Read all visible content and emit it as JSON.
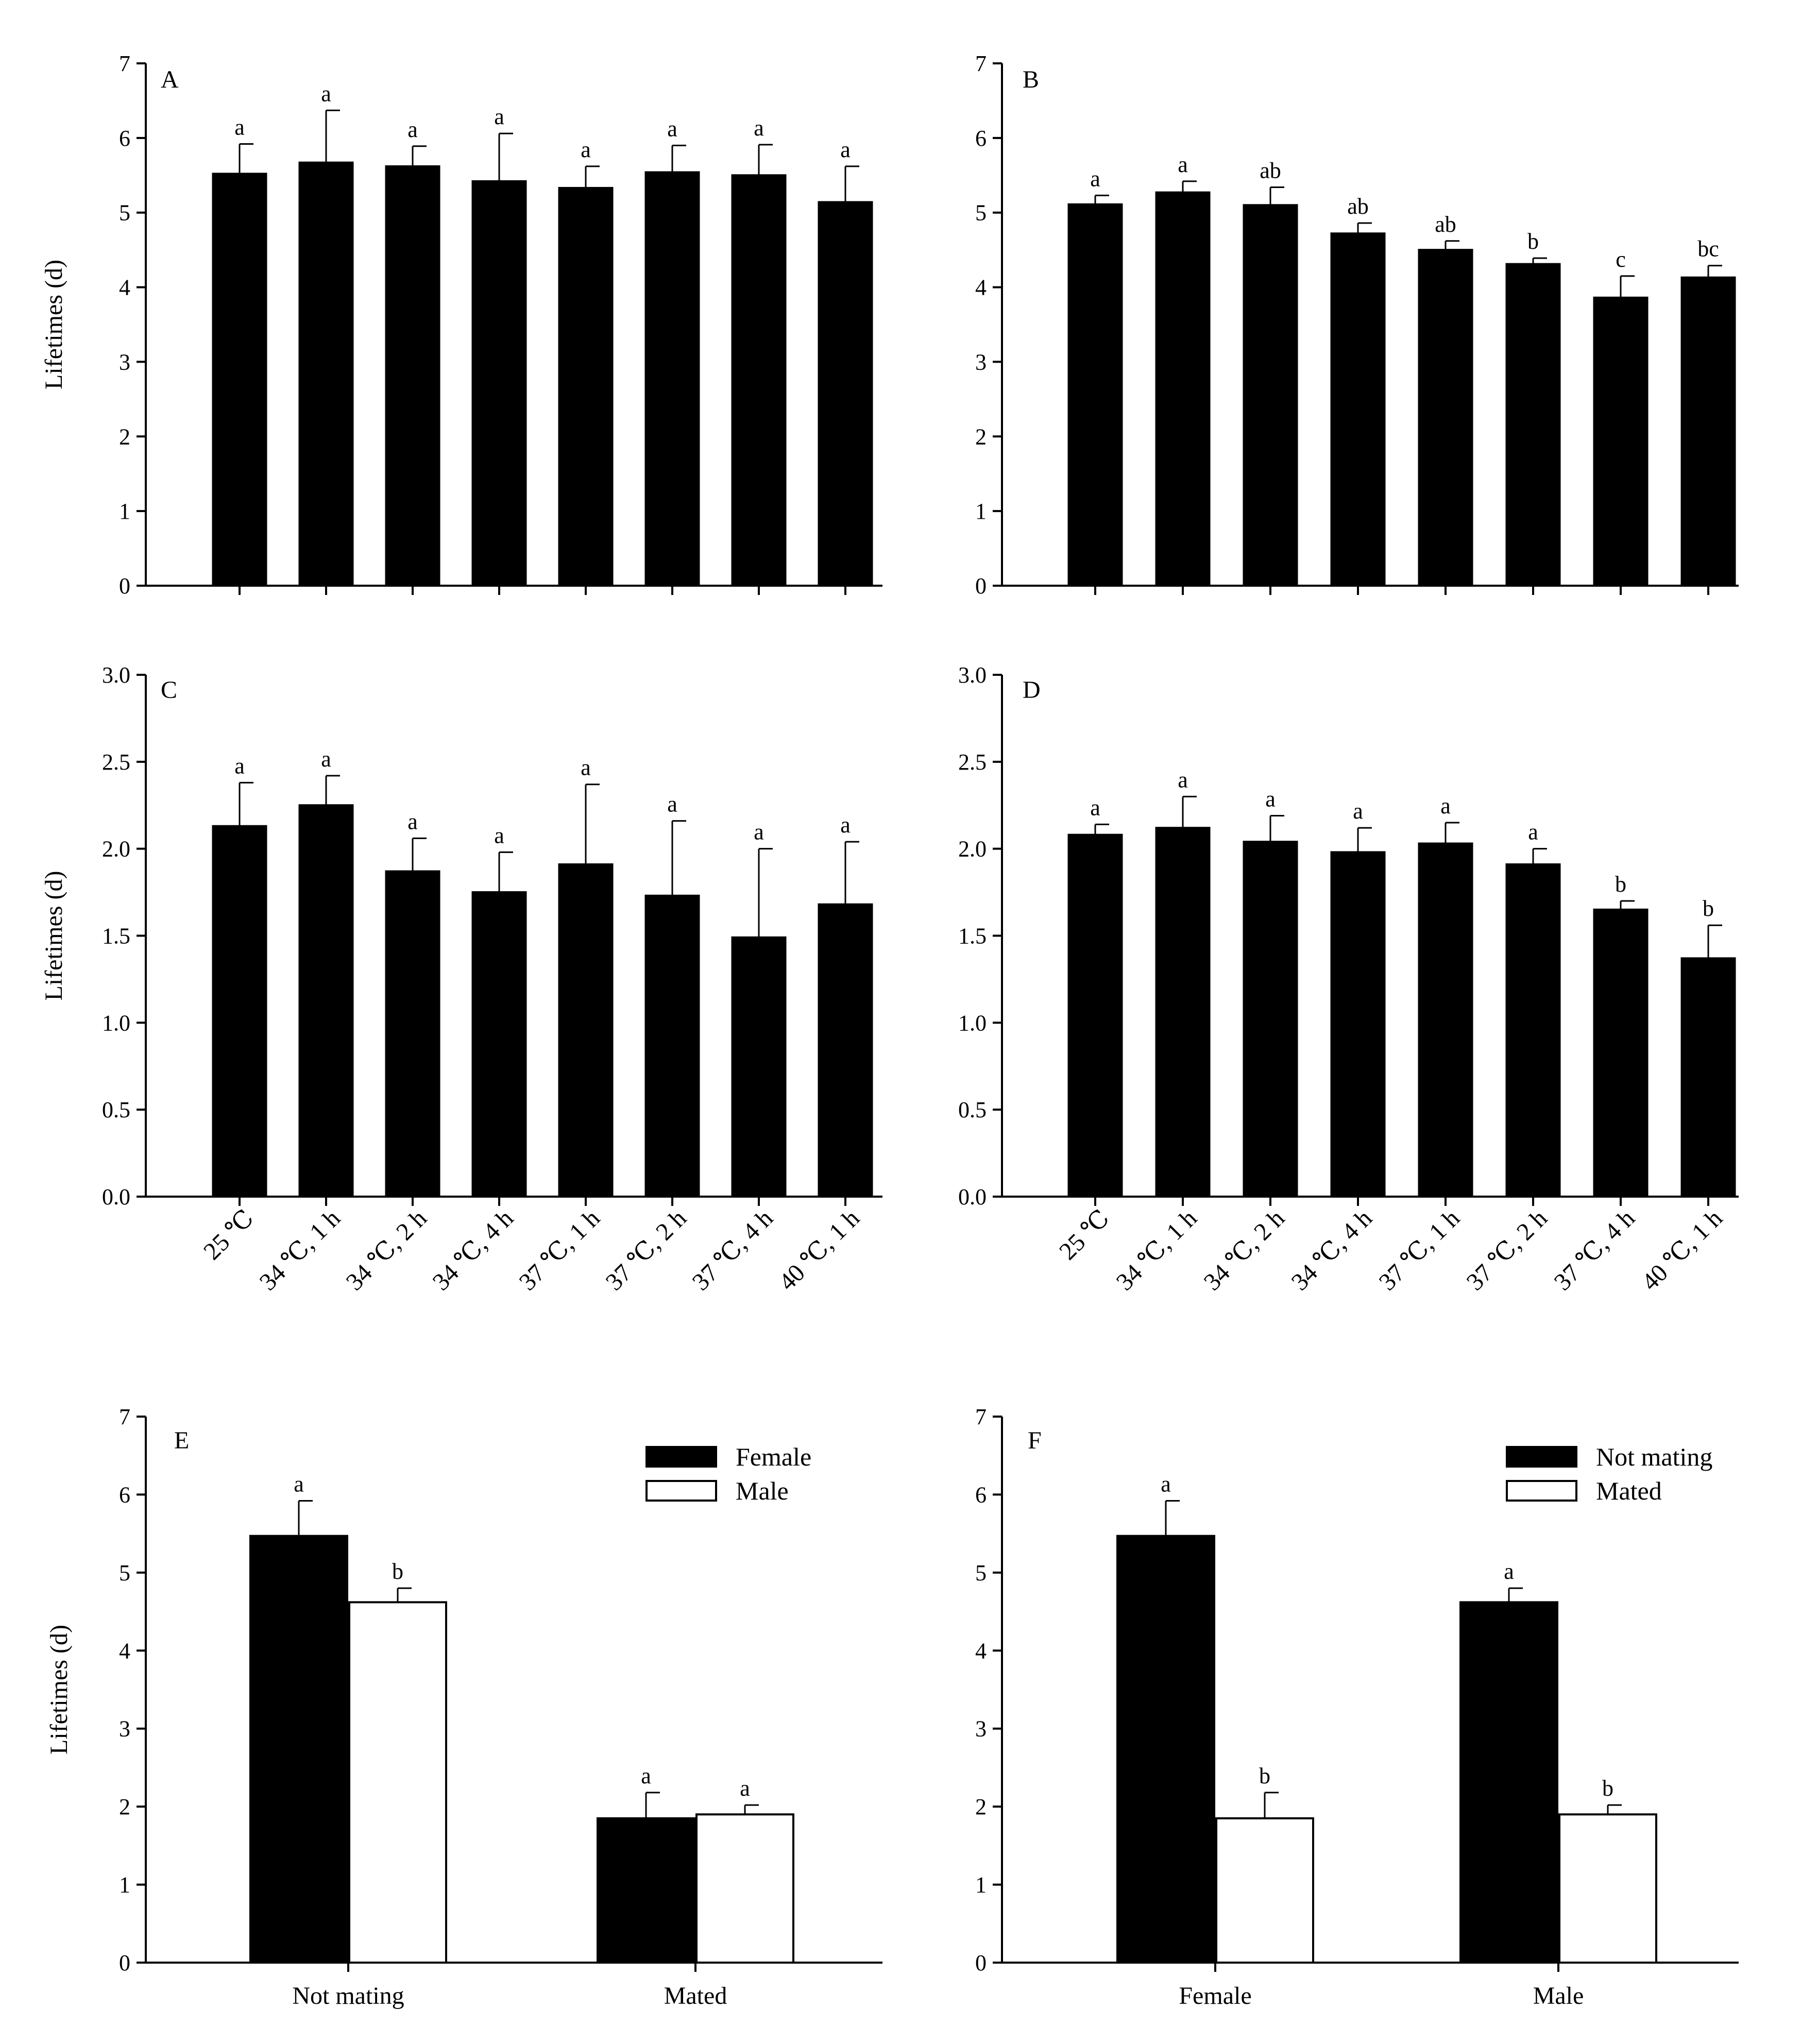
{
  "figure": {
    "background": "#ffffff",
    "ink_color": "#000000",
    "open_bar_color": "#ffffff"
  },
  "chart_data": [
    {
      "panel": "A",
      "type": "bar",
      "ylabel": "Lifetimes (d)",
      "ylim": [
        0,
        7
      ],
      "yticks": [
        "0",
        "1",
        "2",
        "3",
        "4",
        "5",
        "6",
        "7"
      ],
      "categories": [
        "25 ℃",
        "34 ℃, 1 h",
        "34 ℃, 2 h",
        "34 ℃, 4 h",
        "37 ℃, 1 h",
        "37 ℃, 2 h",
        "37 ℃, 4 h",
        "40 ℃, 1 h"
      ],
      "show_category_labels": false,
      "values": [
        5.52,
        5.67,
        5.62,
        5.42,
        5.33,
        5.54,
        5.5,
        5.14
      ],
      "errors": [
        0.4,
        0.7,
        0.27,
        0.64,
        0.29,
        0.36,
        0.41,
        0.48
      ],
      "letters": [
        "a",
        "a",
        "a",
        "a",
        "a",
        "a",
        "a",
        "a"
      ]
    },
    {
      "panel": "B",
      "type": "bar",
      "ylabel": "",
      "ylim": [
        0,
        7
      ],
      "yticks": [
        "0",
        "1",
        "2",
        "3",
        "4",
        "5",
        "6",
        "7"
      ],
      "categories": [
        "25 ℃",
        "34 ℃, 1 h",
        "34 ℃, 2 h",
        "34 ℃, 4 h",
        "37 ℃, 1 h",
        "37 ℃, 2 h",
        "37 ℃, 4 h",
        "40 ℃, 1 h"
      ],
      "show_category_labels": false,
      "values": [
        5.11,
        5.27,
        5.1,
        4.72,
        4.5,
        4.31,
        3.86,
        4.13
      ],
      "errors": [
        0.12,
        0.15,
        0.24,
        0.14,
        0.12,
        0.08,
        0.29,
        0.16
      ],
      "letters": [
        "a",
        "a",
        "ab",
        "ab",
        "ab",
        "b",
        "c",
        "bc"
      ]
    },
    {
      "panel": "C",
      "type": "bar",
      "ylabel": "Lifetimes (d)",
      "ylim": [
        0,
        3
      ],
      "yticks": [
        "0.0",
        "0.5",
        "1.0",
        "1.5",
        "2.0",
        "2.5",
        "3.0"
      ],
      "categories": [
        "25 ℃",
        "34 ℃, 1 h",
        "34 ℃, 2 h",
        "34 ℃, 4 h",
        "37 ℃, 1 h",
        "37 ℃, 2 h",
        "37 ℃, 4 h",
        "40 ℃, 1 h"
      ],
      "show_category_labels": true,
      "values": [
        2.13,
        2.25,
        1.87,
        1.75,
        1.91,
        1.73,
        1.49,
        1.68
      ],
      "errors": [
        0.25,
        0.17,
        0.19,
        0.23,
        0.46,
        0.43,
        0.51,
        0.36
      ],
      "letters": [
        "a",
        "a",
        "a",
        "a",
        "a",
        "a",
        "a",
        "a"
      ]
    },
    {
      "panel": "D",
      "type": "bar",
      "ylabel": "",
      "ylim": [
        0,
        3
      ],
      "yticks": [
        "0.0",
        "0.5",
        "1.0",
        "1.5",
        "2.0",
        "2.5",
        "3.0"
      ],
      "categories": [
        "25 ℃",
        "34 ℃, 1 h",
        "34 ℃, 2 h",
        "34 ℃, 4 h",
        "37 ℃, 1 h",
        "37 ℃, 2 h",
        "37 ℃, 4 h",
        "40 ℃, 1 h"
      ],
      "show_category_labels": true,
      "values": [
        2.08,
        2.12,
        2.04,
        1.98,
        2.03,
        1.91,
        1.65,
        1.37
      ],
      "errors": [
        0.06,
        0.18,
        0.15,
        0.14,
        0.12,
        0.09,
        0.05,
        0.19
      ],
      "letters": [
        "a",
        "a",
        "a",
        "a",
        "a",
        "a",
        "b",
        "b"
      ]
    },
    {
      "panel": "E",
      "type": "bar",
      "ylabel": "Lifetimes (d)",
      "ylim": [
        0,
        7
      ],
      "yticks": [
        "0",
        "1",
        "2",
        "3",
        "4",
        "5",
        "6",
        "7"
      ],
      "categories": [
        "Not mating",
        "Mated"
      ],
      "show_category_labels": true,
      "series": [
        {
          "name": "Female",
          "fill": "#000000",
          "values": [
            5.47,
            1.85
          ],
          "errors": [
            0.45,
            0.33
          ],
          "letters": [
            "a",
            "a"
          ]
        },
        {
          "name": "Male",
          "fill": "#ffffff",
          "values": [
            4.62,
            1.9
          ],
          "errors": [
            0.18,
            0.12
          ],
          "letters": [
            "b",
            "a"
          ]
        }
      ],
      "legend": "top-right"
    },
    {
      "panel": "F",
      "type": "bar",
      "ylabel": "",
      "ylim": [
        0,
        7
      ],
      "yticks": [
        "0",
        "1",
        "2",
        "3",
        "4",
        "5",
        "6",
        "7"
      ],
      "categories": [
        "Female",
        "Male"
      ],
      "show_category_labels": true,
      "series": [
        {
          "name": "Not mating",
          "fill": "#000000",
          "values": [
            5.47,
            4.62
          ],
          "errors": [
            0.45,
            0.18
          ],
          "letters": [
            "a",
            "a"
          ]
        },
        {
          "name": "Mated",
          "fill": "#ffffff",
          "values": [
            1.85,
            1.9
          ],
          "errors": [
            0.33,
            0.12
          ],
          "letters": [
            "b",
            "b"
          ]
        }
      ],
      "legend": "top-right"
    }
  ]
}
